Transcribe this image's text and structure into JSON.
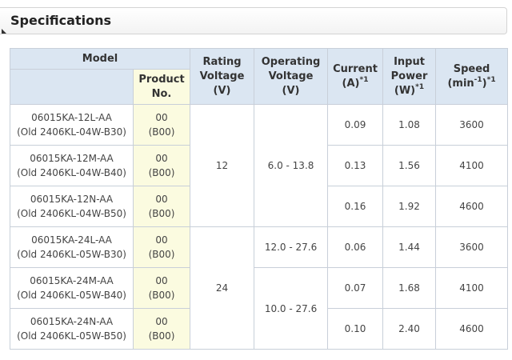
{
  "section": {
    "title": "Specifications"
  },
  "table": {
    "headers": {
      "model": "Model",
      "product_line1": "Product",
      "product_line2": "No.",
      "rating_line1": "Rating",
      "rating_line2": "Voltage",
      "rating_line3": "(V)",
      "operating_line1": "Operating",
      "operating_line2": "Voltage",
      "operating_line3": "(V)",
      "current_line1": "Current",
      "current_line2": "(A)",
      "current_note": "*1",
      "power_line1": "Input",
      "power_line2": "Power",
      "power_line3": "(W)",
      "power_note": "*1",
      "speed_line1": "Speed",
      "speed_unit_pre": "(min",
      "speed_unit_exp": "-1",
      "speed_unit_post": ")",
      "speed_note": "*1"
    },
    "rating_groups": [
      "12",
      "24"
    ],
    "operating_groups": [
      "6.0 - 13.8",
      "12.0 - 27.6",
      "10.0 - 27.6"
    ],
    "rows": [
      {
        "model": "06015KA-12L-AA",
        "old": "(Old 2406KL-04W-B30)",
        "product": "00",
        "product_old": "(B00)",
        "current": "0.09",
        "power": "1.08",
        "speed": "3600"
      },
      {
        "model": "06015KA-12M-AA",
        "old": "(Old 2406KL-04W-B40)",
        "product": "00",
        "product_old": "(B00)",
        "current": "0.13",
        "power": "1.56",
        "speed": "4100"
      },
      {
        "model": "06015KA-12N-AA",
        "old": "(Old 2406KL-04W-B50)",
        "product": "00",
        "product_old": "(B00)",
        "current": "0.16",
        "power": "1.92",
        "speed": "4600"
      },
      {
        "model": "06015KA-24L-AA",
        "old": "(Old 2406KL-05W-B30)",
        "product": "00",
        "product_old": "(B00)",
        "current": "0.06",
        "power": "1.44",
        "speed": "3600"
      },
      {
        "model": "06015KA-24M-AA",
        "old": "(Old 2406KL-05W-B40)",
        "product": "00",
        "product_old": "(B00)",
        "current": "0.07",
        "power": "1.68",
        "speed": "4100"
      },
      {
        "model": "06015KA-24N-AA",
        "old": "(Old 2406KL-05W-B50)",
        "product": "00",
        "product_old": "(B00)",
        "current": "0.10",
        "power": "2.40",
        "speed": "4600"
      }
    ]
  }
}
